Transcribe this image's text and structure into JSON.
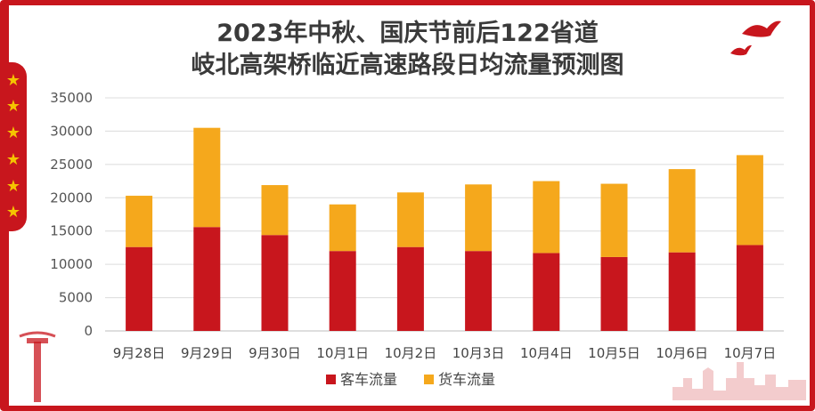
{
  "chart_data": {
    "type": "bar",
    "stacked": true,
    "title_line1": "2023年中秋、国庆节前后122省道",
    "title_line2": "岐北高架桥临近高速路段日均流量预测图",
    "categories": [
      "9月28日",
      "9月29日",
      "9月30日",
      "10月1日",
      "10月2日",
      "10月3日",
      "10月4日",
      "10月5日",
      "10月6日",
      "10月7日"
    ],
    "series": [
      {
        "name": "客车流量",
        "color": "#c8161d",
        "values": [
          12600,
          15600,
          14400,
          12000,
          12600,
          12000,
          11700,
          11100,
          11800,
          12900
        ]
      },
      {
        "name": "货车流量",
        "color": "#f5a81c",
        "values": [
          7700,
          14900,
          7500,
          7000,
          8200,
          10000,
          10800,
          11000,
          12500,
          13500
        ]
      }
    ],
    "ylim": [
      0,
      35000
    ],
    "yticks": [
      "0",
      "5000",
      "10000",
      "15000",
      "20000",
      "25000",
      "30000",
      "35000"
    ],
    "grid": true,
    "legend_position": "bottom-center"
  }
}
